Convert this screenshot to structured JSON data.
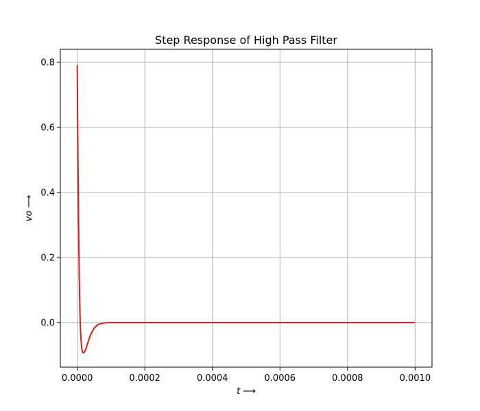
{
  "chart_data": {
    "type": "line",
    "title": "Step Response of High Pass Filter",
    "xlabel": "t ⟶",
    "ylabel": "vo ⟶",
    "xlim": [
      -5e-05,
      0.00105
    ],
    "ylim": [
      -0.137,
      0.84
    ],
    "xticks": [
      0.0,
      0.0002,
      0.0004,
      0.0006,
      0.0008,
      0.001
    ],
    "xtick_labels": [
      "0.0000",
      "0.0002",
      "0.0004",
      "0.0006",
      "0.0008",
      "0.0010"
    ],
    "yticks": [
      0.0,
      0.2,
      0.4,
      0.6,
      0.8
    ],
    "ytick_labels": [
      "0.0",
      "0.2",
      "0.4",
      "0.6",
      "0.8"
    ],
    "grid": true,
    "series": [
      {
        "color": "#e41a1c",
        "x": [
          0.0,
          2e-06,
          4e-06,
          6e-06,
          8e-06,
          1e-05,
          1.2e-05,
          1.4e-05,
          1.6e-05,
          1.8e-05,
          2e-05,
          2.2e-05,
          2.5e-05,
          3e-05,
          3.5e-05,
          4e-05,
          5e-05,
          6e-05,
          7e-05,
          8e-05,
          9e-05,
          0.0001,
          0.00012,
          0.00015,
          0.0002,
          0.0003,
          0.0004,
          0.0005,
          0.0006,
          0.0007,
          0.0008,
          0.0009,
          0.001
        ],
        "y": [
          0.792,
          0.52,
          0.3,
          0.14,
          0.03,
          -0.03,
          -0.065,
          -0.083,
          -0.091,
          -0.093,
          -0.092,
          -0.089,
          -0.082,
          -0.066,
          -0.05,
          -0.036,
          -0.017,
          -0.007,
          -0.003,
          -0.0012,
          -0.0005,
          -0.0002,
          0.0,
          0.0,
          0.0,
          0.0,
          0.0,
          0.0,
          0.0,
          0.0,
          0.0,
          0.0,
          0.0
        ]
      }
    ]
  }
}
